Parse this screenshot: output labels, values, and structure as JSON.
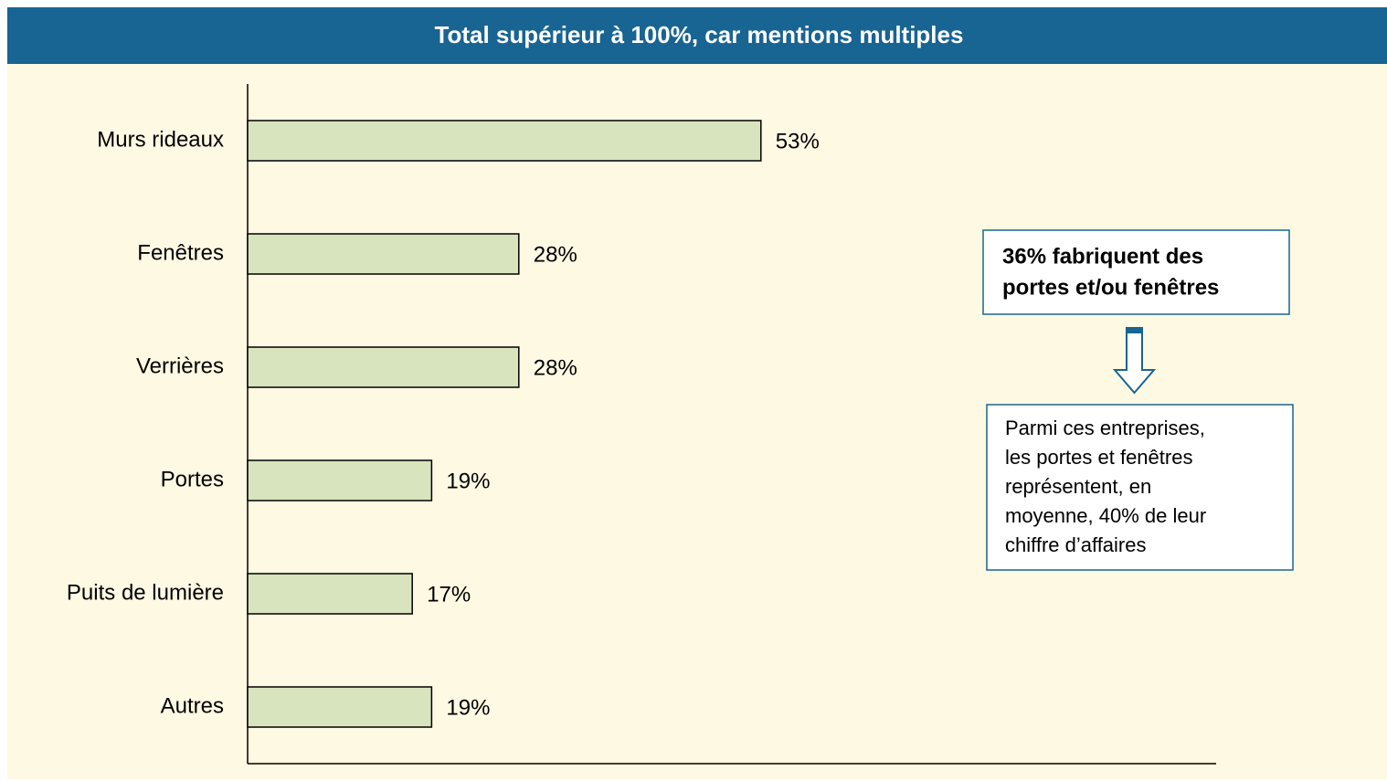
{
  "chart_data": {
    "type": "bar",
    "orientation": "horizontal",
    "title": "Total  supérieur à 100%, car mentions multiples",
    "categories": [
      "Murs rideaux",
      "Fenêtres",
      "Verrières",
      "Portes",
      "Puits de lumière",
      "Autres"
    ],
    "values": [
      53,
      28,
      28,
      19,
      17,
      19
    ],
    "value_labels": [
      "53%",
      "28%",
      "28%",
      "19%",
      "17%",
      "19%"
    ],
    "color": "#d7e4bd",
    "xlim": [
      0,
      100
    ],
    "annotations": [
      {
        "lines": [
          "36% fabriquent des",
          "portes et/ou fenêtres"
        ]
      },
      {
        "lines": [
          "Parmi ces entreprises,",
          "les portes et fenêtres",
          "représentent, en",
          "moyenne, 40% de leur",
          "chiffre d’affaires"
        ]
      }
    ]
  }
}
